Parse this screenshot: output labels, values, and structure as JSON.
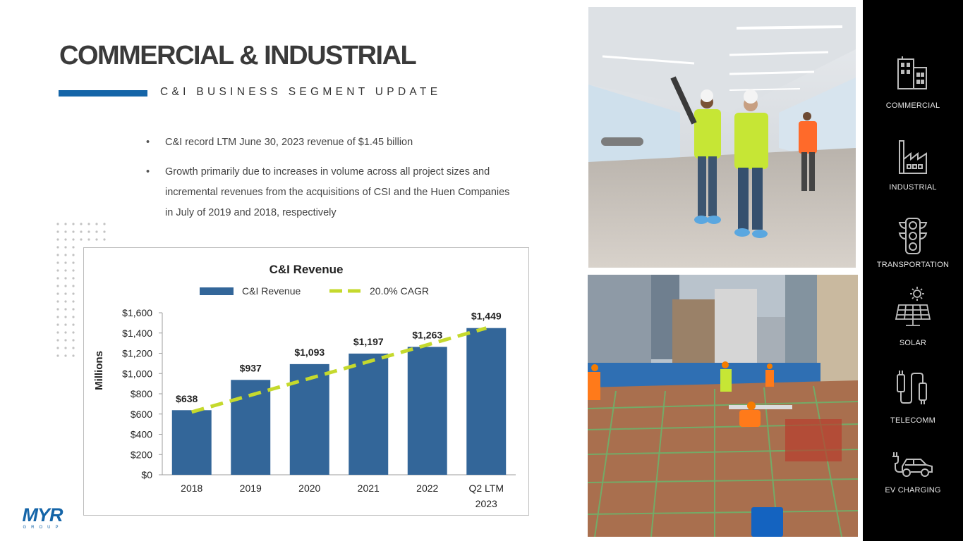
{
  "header": {
    "title": "COMMERCIAL & INDUSTRIAL",
    "subtitle": "C&I BUSINESS SEGMENT UPDATE"
  },
  "bullets": [
    "C&I record LTM June 30, 2023 revenue of $1.45 billion",
    "Growth primarily due to increases in volume across all project sizes and incremental revenues from the acquisitions of CSI and the Huen Companies in July of 2019 and 2018, respectively"
  ],
  "chart_data": {
    "type": "bar",
    "title": "C&I Revenue",
    "ylabel": "Millions",
    "categories": [
      "2018",
      "2019",
      "2020",
      "2021",
      "2022",
      "Q2 LTM 2023"
    ],
    "values": [
      638,
      937,
      1093,
      1197,
      1263,
      1449
    ],
    "data_labels": [
      "$638",
      "$937",
      "$1,093",
      "$1,197",
      "$1,263",
      "$1,449"
    ],
    "ylim": [
      0,
      1600
    ],
    "yticks": [
      0,
      200,
      400,
      600,
      800,
      1000,
      1200,
      1400,
      1600
    ],
    "ytick_labels": [
      "$0",
      "$200",
      "$400",
      "$600",
      "$800",
      "$1,000",
      "$1,200",
      "$1,400",
      "$1,600"
    ],
    "series": [
      {
        "name": "C&I Revenue",
        "type": "bar",
        "color": "#336699"
      },
      {
        "name": "20.0% CAGR",
        "type": "dashed-line",
        "color": "#c5d92d",
        "start": 620,
        "end": 1449
      }
    ],
    "legend": "top",
    "grid": false
  },
  "sidebar": {
    "items": [
      {
        "label": "COMMERCIAL",
        "icon": "building-icon"
      },
      {
        "label": "INDUSTRIAL",
        "icon": "factory-icon"
      },
      {
        "label": "TRANSPORTATION",
        "icon": "traffic-light-icon"
      },
      {
        "label": "SOLAR",
        "icon": "solar-panel-icon"
      },
      {
        "label": "TELECOMM",
        "icon": "cable-icon"
      },
      {
        "label": "EV CHARGING",
        "icon": "ev-car-icon"
      }
    ]
  },
  "logo": {
    "text": "MYR",
    "subtext": "GROUP",
    "color": "#1565a8"
  },
  "colors": {
    "accent": "#1565a8",
    "bar": "#336699",
    "cagr": "#c5d92d",
    "sidebar": "#000000"
  }
}
